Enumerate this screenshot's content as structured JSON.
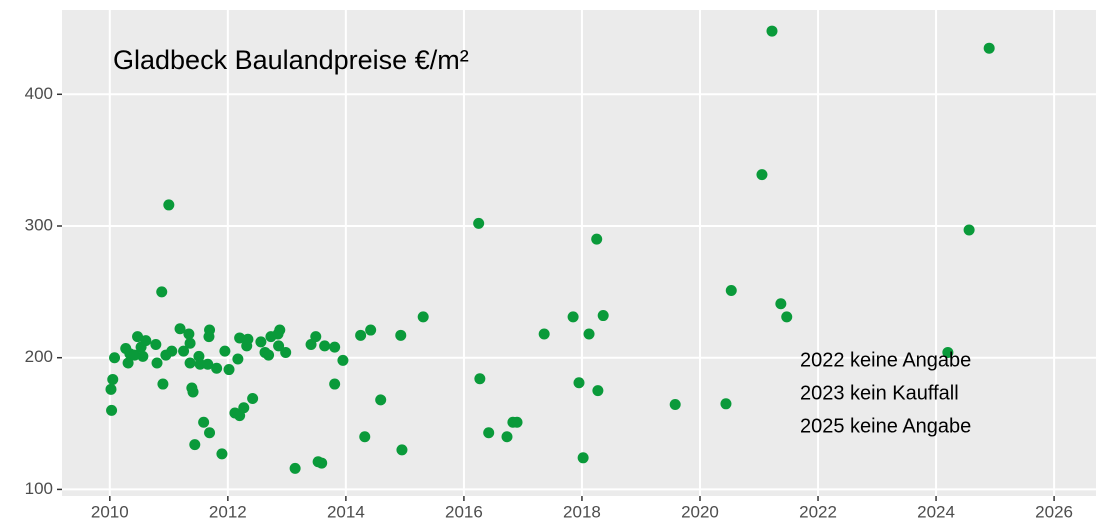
{
  "chart_data": {
    "type": "scatter",
    "title": "Gladbeck Baulandpreise €/m²",
    "annotations": [
      "2022 keine Angabe",
      "2023 kein Kauffall",
      "2025 keine Angabe"
    ],
    "color": "#0a9a3a",
    "grid": true,
    "xlim": [
      2009.19,
      2026.71
    ],
    "ylim": [
      95,
      464
    ],
    "xticks": [
      2010,
      2012,
      2014,
      2016,
      2018,
      2020,
      2022,
      2024,
      2026
    ],
    "yticks": [
      100,
      200,
      300,
      400
    ],
    "x": [
      2010.02,
      2010.03,
      2010.05,
      2010.08,
      2010.27,
      2010.31,
      2010.34,
      2010.42,
      2010.47,
      2010.53,
      2010.56,
      2010.61,
      2010.8,
      2010.78,
      2010.88,
      2010.9,
      2010.95,
      2011.0,
      2011.05,
      2011.19,
      2011.25,
      2011.34,
      2011.36,
      2011.36,
      2011.39,
      2011.41,
      2011.44,
      2011.51,
      2011.53,
      2011.59,
      2011.66,
      2011.68,
      2011.69,
      2011.69,
      2011.81,
      2011.9,
      2011.95,
      2012.02,
      2012.12,
      2012.17,
      2012.2,
      2012.2,
      2012.27,
      2012.32,
      2012.34,
      2012.42,
      2012.56,
      2012.63,
      2012.69,
      2012.73,
      2012.85,
      2012.88,
      2012.86,
      2012.98,
      2013.14,
      2013.41,
      2013.49,
      2013.53,
      2013.59,
      2013.64,
      2013.81,
      2013.81,
      2013.95,
      2014.25,
      2014.32,
      2014.42,
      2014.59,
      2014.93,
      2014.95,
      2015.31,
      2016.25,
      2016.27,
      2016.42,
      2016.73,
      2016.83,
      2016.9,
      2017.36,
      2017.85,
      2017.95,
      2018.02,
      2018.12,
      2018.25,
      2018.27,
      2018.36,
      2019.58,
      2020.44,
      2020.53,
      2021.05,
      2021.22,
      2021.37,
      2021.47,
      2024.2,
      2024.56,
      2024.9
    ],
    "values": [
      176,
      160,
      183.5,
      200,
      207,
      196,
      203,
      202,
      216,
      208,
      201,
      213,
      196,
      210,
      250,
      180,
      202,
      316,
      205,
      222,
      205,
      218,
      211,
      196,
      177,
      174,
      134,
      201,
      195,
      151,
      195,
      216,
      221,
      143,
      192,
      127,
      205,
      191,
      158,
      199,
      215,
      156,
      162,
      209,
      214,
      169,
      212,
      204,
      202,
      216,
      218,
      221,
      209,
      204,
      116,
      210,
      216,
      121,
      120,
      209,
      180,
      208,
      198,
      217,
      140,
      221,
      168,
      217,
      130,
      231,
      302,
      184,
      143,
      140,
      151,
      151,
      218,
      231,
      181,
      124,
      218,
      290,
      175,
      232,
      164.5,
      165,
      251,
      339,
      448,
      241,
      231,
      204,
      297,
      435
    ]
  }
}
